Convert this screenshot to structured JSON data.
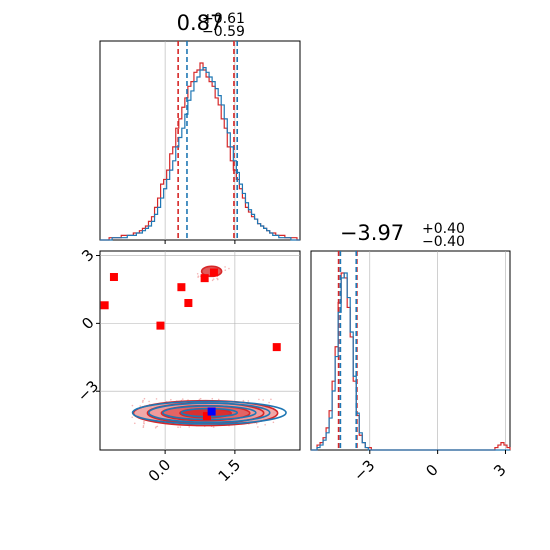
{
  "chart_data": {
    "type": "corner",
    "grid": true,
    "colors": {
      "red": "#d62728",
      "blue": "#1f77b4",
      "red_fill": "#ef9a9a",
      "red_fill_dark": "#e05a5a",
      "grid": "#b0b0b0",
      "marker_blue": "#0000ff",
      "marker_red": "#ff0000"
    },
    "parameters": [
      {
        "summary": {
          "main": "0.87",
          "upper": "+0.61",
          "lower": "−0.59"
        },
        "range": [
          -1.4,
          2.9
        ],
        "ticks": [
          {
            "v": 0.0,
            "label": "0.0"
          },
          {
            "v": 1.5,
            "label": "1.5"
          }
        ]
      },
      {
        "summary": {
          "main": "−3.97",
          "upper": "+0.40",
          "lower": "−0.40"
        },
        "range": [
          -5.6,
          3.2
        ],
        "ticks": [
          {
            "v": -3,
            "label": "−3"
          },
          {
            "v": 0,
            "label": "0"
          },
          {
            "v": 3,
            "label": "3"
          }
        ]
      }
    ],
    "marginal_1d": [
      {
        "bin_edges": [
          -1.4,
          2.9
        ],
        "series": [
          {
            "name": "",
            "color": "red",
            "counts": [
              0,
              0,
              0,
              1,
              1,
              1,
              1,
              2,
              2,
              2,
              2,
              3,
              3,
              4,
              5,
              6,
              8,
              10,
              14,
              18,
              24,
              26,
              30,
              37,
              40,
              48,
              52,
              57,
              61,
              66,
              68,
              72,
              73,
              76,
              73,
              70,
              68,
              66,
              61,
              58,
              52,
              48,
              40,
              34,
              30,
              26,
              22,
              18,
              14,
              12,
              10,
              9,
              7,
              6,
              5,
              4,
              3,
              3,
              2,
              2,
              2,
              1,
              1,
              1,
              1,
              0
            ],
            "quantiles": [
              0.28,
              0.87,
              1.48
            ]
          },
          {
            "name": "",
            "color": "blue",
            "counts": [
              0,
              0,
              0,
              0,
              1,
              1,
              1,
              1,
              1,
              2,
              2,
              2,
              3,
              3,
              4,
              5,
              6,
              8,
              11,
              14,
              18,
              22,
              26,
              30,
              34,
              40,
              44,
              48,
              54,
              60,
              64,
              68,
              70,
              73,
              74,
              72,
              70,
              68,
              65,
              62,
              58,
              52,
              46,
              40,
              34,
              29,
              24,
              20,
              16,
              13,
              11,
              9,
              7,
              6,
              5,
              4,
              3,
              2,
              2,
              1,
              1,
              1,
              1,
              0,
              0,
              0
            ],
            "quantiles": [
              0.47,
              0.87,
              1.55
            ]
          }
        ]
      },
      {
        "bin_edges": [
          -5.6,
          3.2
        ],
        "series": [
          {
            "name": "",
            "color": "red",
            "counts": [
              0,
              0,
              2,
              3,
              5,
              9,
              16,
              28,
              42,
              60,
              72,
              70,
              58,
              46,
              28,
              14,
              6,
              3,
              1,
              1,
              0,
              0,
              0,
              0,
              0,
              0,
              0,
              0,
              0,
              0,
              0,
              0,
              0,
              0,
              0,
              0,
              0,
              0,
              0,
              0,
              0,
              0,
              0,
              0,
              0,
              0,
              0,
              0,
              0,
              0,
              0,
              0,
              0,
              0,
              0,
              0,
              0,
              0,
              0,
              0,
              0,
              1,
              2,
              3,
              2,
              1
            ],
            "quantiles": [
              -4.38,
              -3.97,
              -3.57
            ]
          },
          {
            "name": "",
            "color": "blue",
            "counts": [
              0,
              0,
              1,
              2,
              4,
              7,
              13,
              24,
              38,
              56,
              70,
              72,
              62,
              48,
              30,
              15,
              7,
              3,
              1,
              0,
              0,
              0,
              0,
              0,
              0,
              0,
              0,
              0,
              0,
              0,
              0,
              0,
              0,
              0,
              0,
              0,
              0,
              0,
              0,
              0,
              0,
              0,
              0,
              0,
              0,
              0,
              0,
              0,
              0,
              0,
              0,
              0,
              0,
              0,
              0,
              0,
              0,
              0,
              0,
              0,
              0,
              0,
              0,
              0,
              0,
              0
            ],
            "quantiles": [
              -4.3,
              -3.97,
              -3.6
            ]
          }
        ]
      }
    ],
    "joint_2d": {
      "contours": [
        {
          "color": "red",
          "center": [
            0.87,
            -3.97
          ],
          "radii": [
            [
              0.55,
              0.2
            ],
            [
              0.95,
              0.33
            ],
            [
              1.25,
              0.45
            ],
            [
              1.55,
              0.55
            ]
          ]
        },
        {
          "color": "blue",
          "center": [
            0.95,
            -3.95
          ],
          "radii": [
            [
              0.6,
              0.18
            ],
            [
              1.0,
              0.3
            ],
            [
              1.3,
              0.42
            ],
            [
              1.65,
              0.5
            ]
          ]
        }
      ],
      "markers": [
        {
          "color": "marker_red",
          "x": -1.1,
          "y": 2.05
        },
        {
          "color": "marker_red",
          "x": -1.3,
          "y": 0.8
        },
        {
          "color": "marker_red",
          "x": 0.35,
          "y": 1.6
        },
        {
          "color": "marker_red",
          "x": 0.5,
          "y": 0.9
        },
        {
          "color": "marker_red",
          "x": 0.85,
          "y": 2.0
        },
        {
          "color": "marker_red",
          "x": 1.05,
          "y": 2.25
        },
        {
          "color": "marker_red",
          "x": -0.1,
          "y": -0.1
        },
        {
          "color": "marker_red",
          "x": 2.4,
          "y": -1.05
        },
        {
          "color": "marker_red",
          "x": 0.9,
          "y": -4.1
        },
        {
          "color": "marker_blue",
          "x": 1.0,
          "y": -3.9
        }
      ]
    }
  }
}
